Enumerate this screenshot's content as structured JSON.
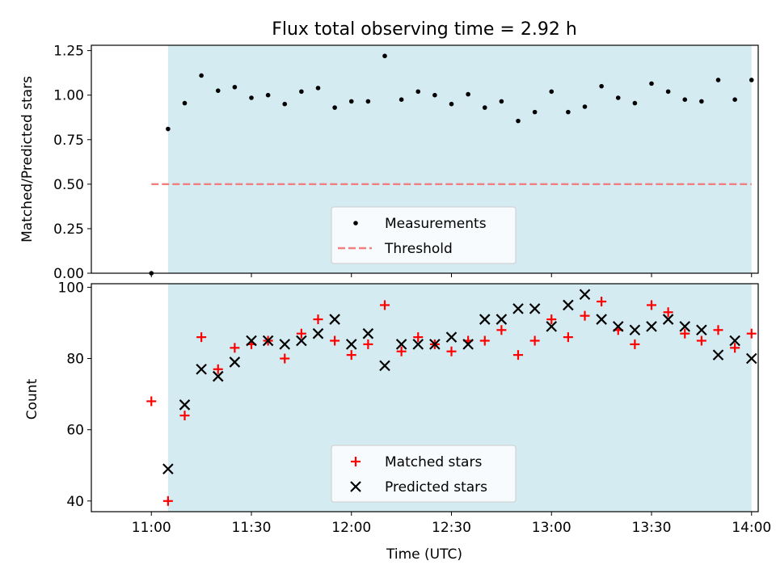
{
  "chart_data": [
    {
      "type": "scatter",
      "title": "Flux total observing time = 2.92 h",
      "xlabel": "",
      "ylabel": "Matched/Predicted stars",
      "ylim": [
        0,
        1.28
      ],
      "yticks": [
        "0.00",
        "0.25",
        "0.50",
        "0.75",
        "1.00",
        "1.25"
      ],
      "ytick_values": [
        0,
        0.25,
        0.5,
        0.75,
        1.0,
        1.25
      ],
      "xlim": [
        "10:42",
        "14:02"
      ],
      "shaded_span": [
        "11:05",
        "14:00"
      ],
      "shaded_color": "#add8e6",
      "threshold": {
        "name": "Threshold",
        "value": 0.5,
        "x_range": [
          "11:00",
          "14:00"
        ],
        "color": "#f08080"
      },
      "series": [
        {
          "name": "Measurements",
          "color": "#000000",
          "marker": "dot",
          "points": [
            [
              "11:00",
              0.0
            ],
            [
              "11:05",
              0.81
            ],
            [
              "11:10",
              0.955
            ],
            [
              "11:15",
              1.11
            ],
            [
              "11:20",
              1.025
            ],
            [
              "11:25",
              1.045
            ],
            [
              "11:30",
              0.985
            ],
            [
              "11:35",
              1.0
            ],
            [
              "11:40",
              0.95
            ],
            [
              "11:45",
              1.02
            ],
            [
              "11:50",
              1.04
            ],
            [
              "11:55",
              0.93
            ],
            [
              "12:00",
              0.965
            ],
            [
              "12:05",
              0.965
            ],
            [
              "12:10",
              1.22
            ],
            [
              "12:15",
              0.975
            ],
            [
              "12:20",
              1.02
            ],
            [
              "12:25",
              1.0
            ],
            [
              "12:30",
              0.95
            ],
            [
              "12:35",
              1.005
            ],
            [
              "12:40",
              0.93
            ],
            [
              "12:45",
              0.965
            ],
            [
              "12:50",
              0.855
            ],
            [
              "12:55",
              0.905
            ],
            [
              "13:00",
              1.02
            ],
            [
              "13:05",
              0.905
            ],
            [
              "13:10",
              0.935
            ],
            [
              "13:15",
              1.05
            ],
            [
              "13:20",
              0.985
            ],
            [
              "13:25",
              0.955
            ],
            [
              "13:30",
              1.065
            ],
            [
              "13:35",
              1.02
            ],
            [
              "13:40",
              0.975
            ],
            [
              "13:45",
              0.965
            ],
            [
              "13:50",
              1.085
            ],
            [
              "13:55",
              0.975
            ],
            [
              "14:00",
              1.085
            ]
          ]
        }
      ],
      "legend": {
        "location": "lower-center",
        "entries": [
          "Measurements",
          "Threshold"
        ]
      }
    },
    {
      "type": "scatter",
      "title": "",
      "xlabel": "Time (UTC)",
      "ylabel": "Count",
      "ylim": [
        37,
        101
      ],
      "yticks": [
        "40",
        "60",
        "80",
        "100"
      ],
      "ytick_values": [
        40,
        60,
        80,
        100
      ],
      "xlim": [
        "10:42",
        "14:02"
      ],
      "xticks": [
        "11:00",
        "11:30",
        "12:00",
        "12:30",
        "13:00",
        "13:30",
        "14:00"
      ],
      "shaded_span": [
        "11:05",
        "14:00"
      ],
      "shaded_color": "#add8e6",
      "series": [
        {
          "name": "Matched stars",
          "color": "#ff0000",
          "marker": "plus",
          "points": [
            [
              "11:00",
              68
            ],
            [
              "11:05",
              40
            ],
            [
              "11:10",
              64
            ],
            [
              "11:15",
              86
            ],
            [
              "11:20",
              77
            ],
            [
              "11:25",
              83
            ],
            [
              "11:30",
              84
            ],
            [
              "11:35",
              85
            ],
            [
              "11:40",
              80
            ],
            [
              "11:45",
              87
            ],
            [
              "11:50",
              91
            ],
            [
              "11:55",
              85
            ],
            [
              "12:00",
              81
            ],
            [
              "12:05",
              84
            ],
            [
              "12:10",
              95
            ],
            [
              "12:15",
              82
            ],
            [
              "12:20",
              86
            ],
            [
              "12:25",
              84
            ],
            [
              "12:30",
              82
            ],
            [
              "12:35",
              85
            ],
            [
              "12:40",
              85
            ],
            [
              "12:45",
              88
            ],
            [
              "12:50",
              81
            ],
            [
              "12:55",
              85
            ],
            [
              "13:00",
              91
            ],
            [
              "13:05",
              86
            ],
            [
              "13:10",
              92
            ],
            [
              "13:15",
              96
            ],
            [
              "13:20",
              88
            ],
            [
              "13:25",
              84
            ],
            [
              "13:30",
              95
            ],
            [
              "13:35",
              93
            ],
            [
              "13:40",
              87
            ],
            [
              "13:45",
              85
            ],
            [
              "13:50",
              88
            ],
            [
              "13:55",
              83
            ],
            [
              "14:00",
              87
            ]
          ]
        },
        {
          "name": "Predicted stars",
          "color": "#000000",
          "marker": "x",
          "points": [
            [
              "11:05",
              49
            ],
            [
              "11:10",
              67
            ],
            [
              "11:15",
              77
            ],
            [
              "11:20",
              75
            ],
            [
              "11:25",
              79
            ],
            [
              "11:30",
              85
            ],
            [
              "11:35",
              85
            ],
            [
              "11:40",
              84
            ],
            [
              "11:45",
              85
            ],
            [
              "11:50",
              87
            ],
            [
              "11:55",
              91
            ],
            [
              "12:00",
              84
            ],
            [
              "12:05",
              87
            ],
            [
              "12:10",
              78
            ],
            [
              "12:15",
              84
            ],
            [
              "12:20",
              84
            ],
            [
              "12:25",
              84
            ],
            [
              "12:30",
              86
            ],
            [
              "12:35",
              84
            ],
            [
              "12:40",
              91
            ],
            [
              "12:45",
              91
            ],
            [
              "12:50",
              94
            ],
            [
              "12:55",
              94
            ],
            [
              "13:00",
              89
            ],
            [
              "13:05",
              95
            ],
            [
              "13:10",
              98
            ],
            [
              "13:15",
              91
            ],
            [
              "13:20",
              89
            ],
            [
              "13:25",
              88
            ],
            [
              "13:30",
              89
            ],
            [
              "13:35",
              91
            ],
            [
              "13:40",
              89
            ],
            [
              "13:45",
              88
            ],
            [
              "13:50",
              81
            ],
            [
              "13:55",
              85
            ],
            [
              "14:00",
              80
            ]
          ]
        }
      ],
      "legend": {
        "location": "lower-center",
        "entries": [
          "Matched stars",
          "Predicted stars"
        ]
      }
    }
  ]
}
